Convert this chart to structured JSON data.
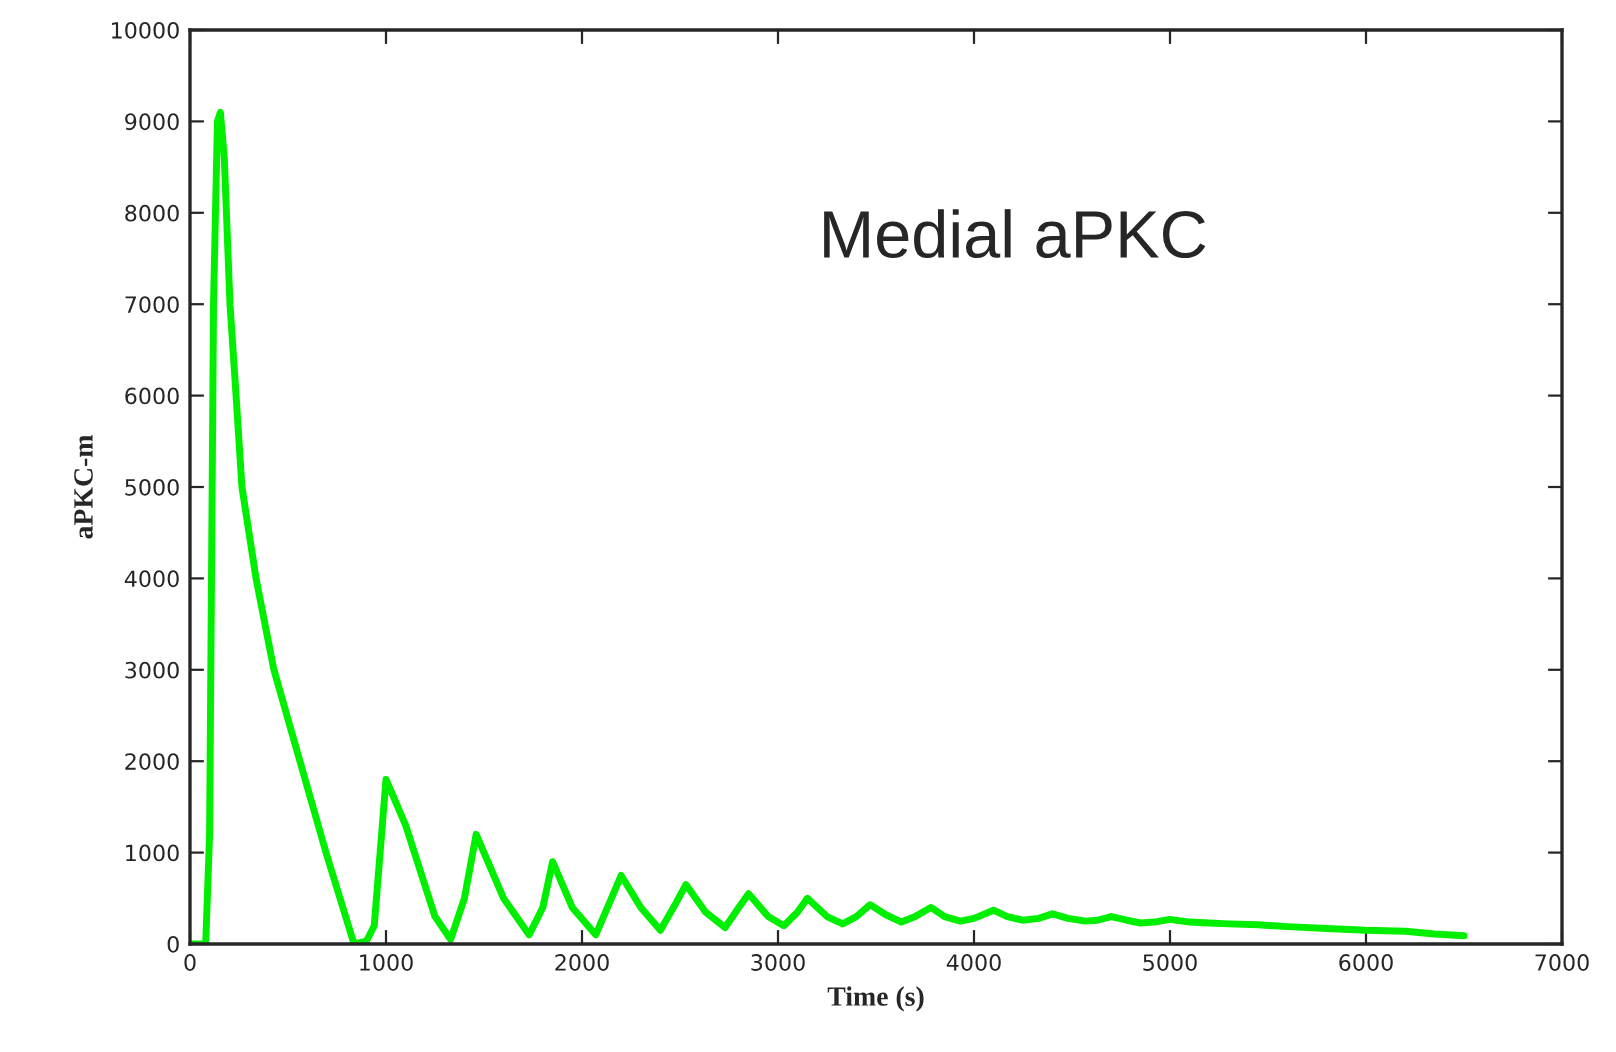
{
  "chart_data": {
    "type": "line",
    "xlabel": "Time (s)",
    "ylabel": "aPKC-m",
    "annotations": [
      "Medial aPKC"
    ],
    "series": [
      {
        "color": "#00ee00",
        "x": [
          0,
          80,
          100,
          120,
          140,
          155,
          175,
          204,
          235,
          265,
          337,
          428,
          561,
          694,
          837,
          900,
          940,
          1000,
          1100,
          1250,
          1330,
          1400,
          1460,
          1600,
          1730,
          1800,
          1850,
          1950,
          2070,
          2150,
          2200,
          2300,
          2400,
          2480,
          2530,
          2630,
          2730,
          2800,
          2850,
          2950,
          3030,
          3100,
          3150,
          3250,
          3330,
          3400,
          3470,
          3550,
          3630,
          3700,
          3780,
          3850,
          3930,
          4000,
          4100,
          4170,
          4250,
          4330,
          4400,
          4480,
          4570,
          4630,
          4700,
          4780,
          4850,
          4920,
          5000,
          5100,
          5200,
          5300,
          5450,
          5600,
          5800,
          6000,
          6200,
          6350,
          6500
        ],
        "values": [
          0,
          0,
          1200,
          7000,
          9000,
          9100,
          8600,
          7000,
          6000,
          5000,
          4000,
          3000,
          2000,
          1000,
          0,
          30,
          200,
          1800,
          1300,
          300,
          50,
          500,
          1200,
          500,
          100,
          400,
          900,
          400,
          100,
          500,
          750,
          400,
          150,
          450,
          650,
          350,
          180,
          400,
          550,
          300,
          200,
          350,
          500,
          300,
          220,
          300,
          430,
          320,
          240,
          300,
          400,
          300,
          250,
          280,
          370,
          300,
          260,
          280,
          330,
          280,
          250,
          260,
          300,
          260,
          230,
          240,
          270,
          240,
          230,
          220,
          210,
          190,
          170,
          150,
          140,
          110,
          90
        ]
      }
    ],
    "xlim": [
      0,
      7000
    ],
    "xticks": [
      0,
      1000,
      2000,
      3000,
      4000,
      5000,
      6000,
      7000
    ],
    "ylim": [
      0,
      10000
    ],
    "yticks": [
      0,
      1000,
      2000,
      3000,
      4000,
      5000,
      6000,
      7000,
      8000,
      9000,
      10000
    ],
    "grid": false,
    "legend": false,
    "marker": "none",
    "line_style": "solid"
  }
}
